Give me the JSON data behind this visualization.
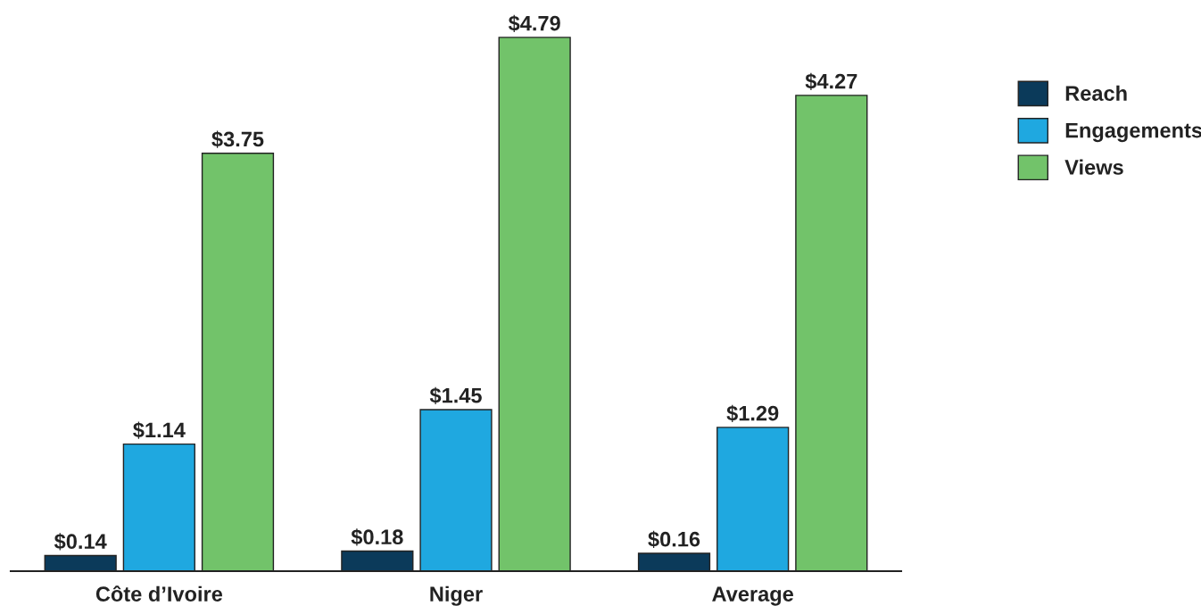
{
  "chart_data": {
    "type": "bar",
    "categories": [
      "Côte d’Ivoire",
      "Niger",
      "Average"
    ],
    "series": [
      {
        "name": "Reach",
        "color": "#0b3a5a",
        "values": [
          0.14,
          0.18,
          0.16
        ],
        "value_labels": [
          "$0.14",
          "$0.18",
          "$0.16"
        ]
      },
      {
        "name": "Engagements",
        "color": "#1fa8e0",
        "values": [
          1.14,
          1.45,
          1.29
        ],
        "value_labels": [
          "$1.14",
          "$1.45",
          "$1.29"
        ]
      },
      {
        "name": "Views",
        "color": "#72c36a",
        "values": [
          3.75,
          4.79,
          4.27
        ],
        "value_labels": [
          "$3.75",
          "$4.79",
          "$4.27"
        ]
      }
    ],
    "legend": "top right",
    "grid": false
  }
}
